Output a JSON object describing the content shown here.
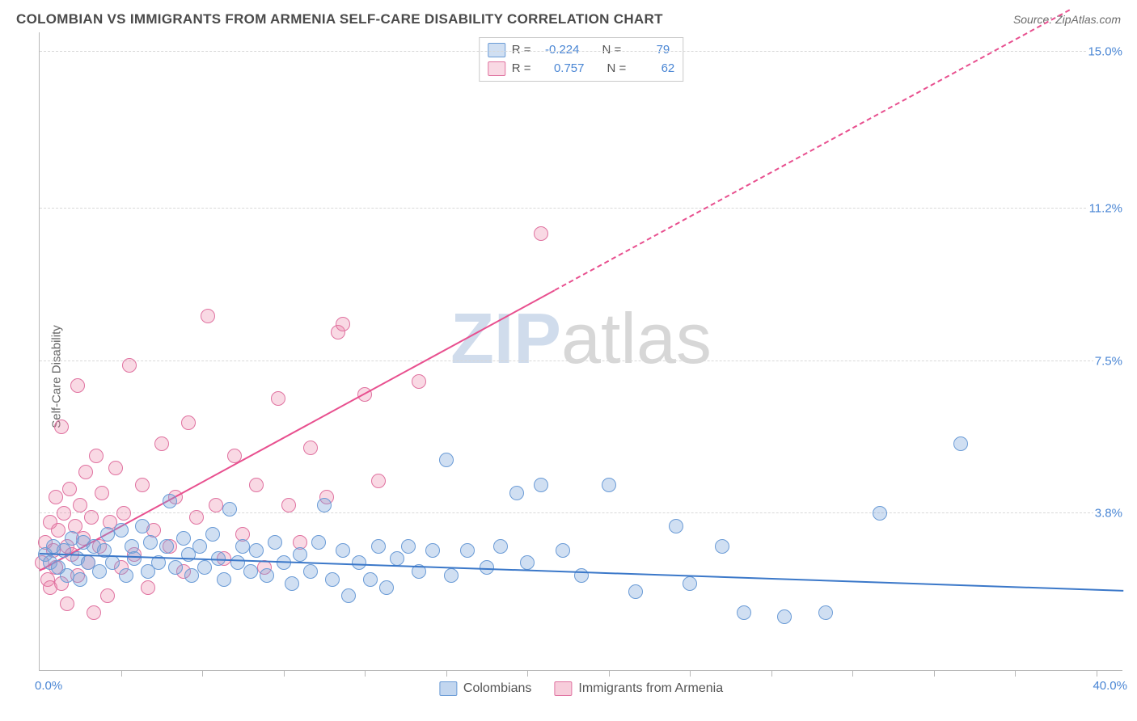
{
  "header": {
    "title": "COLOMBIAN VS IMMIGRANTS FROM ARMENIA SELF-CARE DISABILITY CORRELATION CHART",
    "source_prefix": "Source: ",
    "source_name": "ZipAtlas.com"
  },
  "yaxis_label": "Self-Care Disability",
  "watermark": {
    "part1": "ZIP",
    "part2": "atlas"
  },
  "axes": {
    "xlim": [
      0,
      40
    ],
    "ylim": [
      0,
      15.5
    ],
    "x_ticks_minor": [
      0,
      3,
      6,
      9,
      12,
      15,
      18,
      21,
      24,
      27,
      30,
      33,
      36,
      39
    ],
    "y_gridlines": [
      3.8,
      7.5,
      11.2,
      15.0
    ],
    "y_right_labels": [
      "3.8%",
      "7.5%",
      "11.2%",
      "15.0%"
    ],
    "x_left_label": "0.0%",
    "x_right_label": "40.0%",
    "grid_color": "#d8d8d8",
    "axis_color": "#b8b8b8",
    "axis_label_color": "#4a86d4",
    "axis_label_fontsize": 15
  },
  "series": {
    "colombians": {
      "label": "Colombians",
      "color_fill": "rgba(119,163,219,0.35)",
      "color_stroke": "#6a9bd6",
      "trend_color": "#3b78c9",
      "marker_radius": 9,
      "R": "-0.224",
      "N": "79",
      "trend": {
        "x1": 0,
        "y1": 2.8,
        "x2": 40,
        "y2": 1.9,
        "dash_from_x": null
      },
      "points": [
        [
          0.2,
          2.8
        ],
        [
          0.4,
          2.6
        ],
        [
          0.5,
          3.0
        ],
        [
          0.7,
          2.5
        ],
        [
          0.9,
          2.9
        ],
        [
          1.0,
          2.3
        ],
        [
          1.2,
          3.2
        ],
        [
          1.4,
          2.7
        ],
        [
          1.5,
          2.2
        ],
        [
          1.6,
          3.1
        ],
        [
          1.8,
          2.6
        ],
        [
          2.0,
          3.0
        ],
        [
          2.2,
          2.4
        ],
        [
          2.4,
          2.9
        ],
        [
          2.5,
          3.3
        ],
        [
          2.7,
          2.6
        ],
        [
          3.0,
          3.4
        ],
        [
          3.2,
          2.3
        ],
        [
          3.4,
          3.0
        ],
        [
          3.5,
          2.7
        ],
        [
          3.8,
          3.5
        ],
        [
          4.0,
          2.4
        ],
        [
          4.1,
          3.1
        ],
        [
          4.4,
          2.6
        ],
        [
          4.7,
          3.0
        ],
        [
          4.8,
          4.1
        ],
        [
          5.0,
          2.5
        ],
        [
          5.3,
          3.2
        ],
        [
          5.5,
          2.8
        ],
        [
          5.6,
          2.3
        ],
        [
          5.9,
          3.0
        ],
        [
          6.1,
          2.5
        ],
        [
          6.4,
          3.3
        ],
        [
          6.6,
          2.7
        ],
        [
          6.8,
          2.2
        ],
        [
          7.0,
          3.9
        ],
        [
          7.3,
          2.6
        ],
        [
          7.5,
          3.0
        ],
        [
          7.8,
          2.4
        ],
        [
          8.0,
          2.9
        ],
        [
          8.4,
          2.3
        ],
        [
          8.7,
          3.1
        ],
        [
          9.0,
          2.6
        ],
        [
          9.3,
          2.1
        ],
        [
          9.6,
          2.8
        ],
        [
          10.0,
          2.4
        ],
        [
          10.3,
          3.1
        ],
        [
          10.5,
          4.0
        ],
        [
          10.8,
          2.2
        ],
        [
          11.2,
          2.9
        ],
        [
          11.4,
          1.8
        ],
        [
          11.8,
          2.6
        ],
        [
          12.2,
          2.2
        ],
        [
          12.5,
          3.0
        ],
        [
          12.8,
          2.0
        ],
        [
          13.2,
          2.7
        ],
        [
          13.6,
          3.0
        ],
        [
          14.0,
          2.4
        ],
        [
          14.5,
          2.9
        ],
        [
          15.0,
          5.1
        ],
        [
          15.2,
          2.3
        ],
        [
          15.8,
          2.9
        ],
        [
          16.5,
          2.5
        ],
        [
          17.0,
          3.0
        ],
        [
          17.6,
          4.3
        ],
        [
          18.0,
          2.6
        ],
        [
          18.5,
          4.5
        ],
        [
          19.3,
          2.9
        ],
        [
          20.0,
          2.3
        ],
        [
          21.0,
          4.5
        ],
        [
          22.0,
          1.9
        ],
        [
          23.5,
          3.5
        ],
        [
          24.0,
          2.1
        ],
        [
          25.2,
          3.0
        ],
        [
          26.0,
          1.4
        ],
        [
          27.5,
          1.3
        ],
        [
          29.0,
          1.4
        ],
        [
          31.0,
          3.8
        ],
        [
          34.0,
          5.5
        ]
      ]
    },
    "armenia": {
      "label": "Immigrants from Armenia",
      "color_fill": "rgba(235,130,165,0.30)",
      "color_stroke": "#e072a0",
      "trend_color": "#e8508f",
      "marker_radius": 9,
      "R": "0.757",
      "N": "62",
      "trend": {
        "x1": 0,
        "y1": 2.4,
        "x2": 38,
        "y2": 16.0,
        "dash_from_x": 19
      },
      "points": [
        [
          0.1,
          2.6
        ],
        [
          0.2,
          3.1
        ],
        [
          0.3,
          2.2
        ],
        [
          0.4,
          3.6
        ],
        [
          0.4,
          2.0
        ],
        [
          0.5,
          2.9
        ],
        [
          0.6,
          4.2
        ],
        [
          0.6,
          2.5
        ],
        [
          0.7,
          3.4
        ],
        [
          0.8,
          5.9
        ],
        [
          0.8,
          2.1
        ],
        [
          0.9,
          3.8
        ],
        [
          1.0,
          3.0
        ],
        [
          1.0,
          1.6
        ],
        [
          1.1,
          4.4
        ],
        [
          1.2,
          2.8
        ],
        [
          1.3,
          3.5
        ],
        [
          1.4,
          6.9
        ],
        [
          1.4,
          2.3
        ],
        [
          1.5,
          4.0
        ],
        [
          1.6,
          3.2
        ],
        [
          1.7,
          4.8
        ],
        [
          1.8,
          2.6
        ],
        [
          1.9,
          3.7
        ],
        [
          2.0,
          1.4
        ],
        [
          2.1,
          5.2
        ],
        [
          2.2,
          3.0
        ],
        [
          2.3,
          4.3
        ],
        [
          2.5,
          1.8
        ],
        [
          2.6,
          3.6
        ],
        [
          2.8,
          4.9
        ],
        [
          3.0,
          2.5
        ],
        [
          3.1,
          3.8
        ],
        [
          3.3,
          7.4
        ],
        [
          3.5,
          2.8
        ],
        [
          3.8,
          4.5
        ],
        [
          4.0,
          2.0
        ],
        [
          4.2,
          3.4
        ],
        [
          4.5,
          5.5
        ],
        [
          4.8,
          3.0
        ],
        [
          5.0,
          4.2
        ],
        [
          5.3,
          2.4
        ],
        [
          5.5,
          6.0
        ],
        [
          5.8,
          3.7
        ],
        [
          6.2,
          8.6
        ],
        [
          6.5,
          4.0
        ],
        [
          6.8,
          2.7
        ],
        [
          7.2,
          5.2
        ],
        [
          7.5,
          3.3
        ],
        [
          8.0,
          4.5
        ],
        [
          8.3,
          2.5
        ],
        [
          8.8,
          6.6
        ],
        [
          9.2,
          4.0
        ],
        [
          9.6,
          3.1
        ],
        [
          10.0,
          5.4
        ],
        [
          10.6,
          4.2
        ],
        [
          11.0,
          8.2
        ],
        [
          11.2,
          8.4
        ],
        [
          12.0,
          6.7
        ],
        [
          12.5,
          4.6
        ],
        [
          14.0,
          7.0
        ],
        [
          18.5,
          10.6
        ]
      ]
    }
  },
  "bottom_legend": [
    {
      "swatch_fill": "rgba(119,163,219,0.45)",
      "swatch_stroke": "#6a9bd6",
      "label": "Colombians"
    },
    {
      "swatch_fill": "rgba(235,130,165,0.40)",
      "swatch_stroke": "#e072a0",
      "label": "Immigrants from Armenia"
    }
  ],
  "stats_layout": {
    "R_label": "R =",
    "N_label": "N ="
  }
}
